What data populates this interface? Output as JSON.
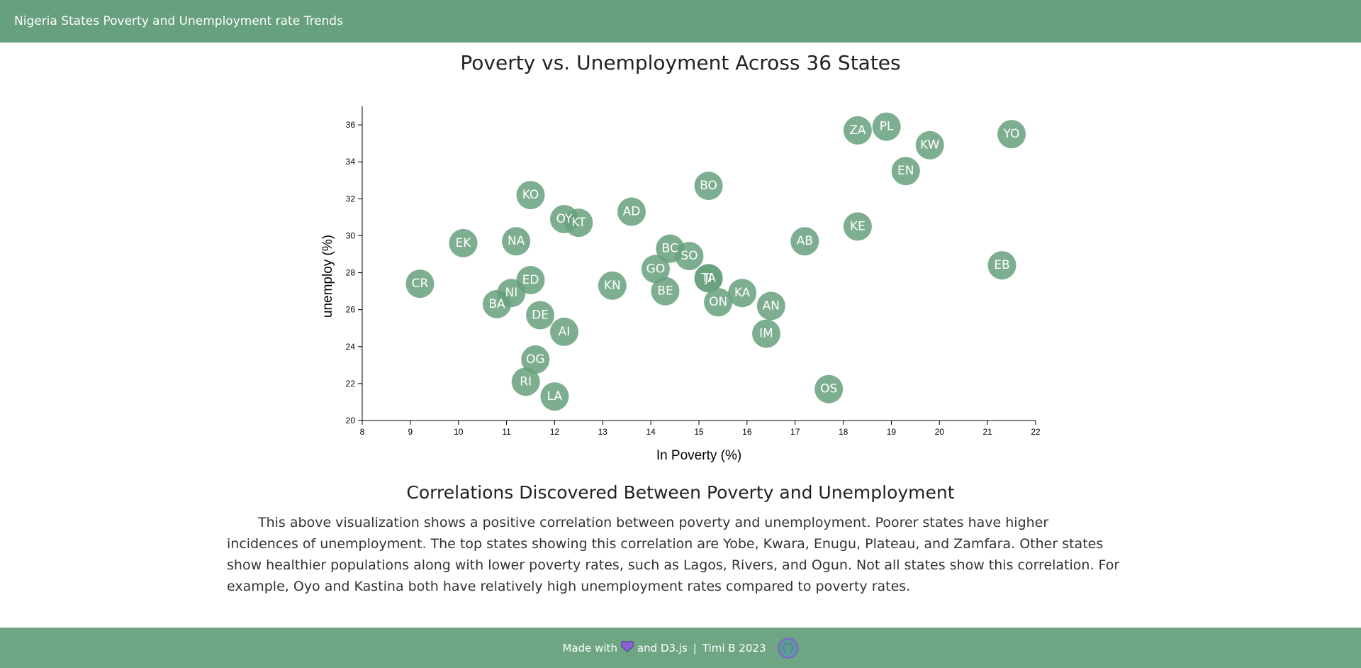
{
  "app": {
    "brand": "Nigeria States Poverty and Unemployment rate Trends"
  },
  "chart_title": "Poverty vs. Unemployment Across 36 States",
  "chart_data": {
    "type": "scatter",
    "title": "Poverty vs. Unemployment Across 36 States",
    "xlabel": "In Poverty (%)",
    "ylabel": "unemploy (%)",
    "xlim": [
      8,
      22
    ],
    "ylim": [
      20,
      37
    ],
    "xticks": [
      8,
      9,
      10,
      11,
      12,
      13,
      14,
      15,
      16,
      17,
      18,
      19,
      20,
      21,
      22
    ],
    "yticks": [
      20,
      22,
      24,
      26,
      28,
      30,
      32,
      34,
      36
    ],
    "grid": false,
    "points": [
      {
        "label": "YO",
        "x": 21.5,
        "y": 35.5
      },
      {
        "label": "PL",
        "x": 18.9,
        "y": 35.9
      },
      {
        "label": "ZA",
        "x": 18.3,
        "y": 35.7
      },
      {
        "label": "KW",
        "x": 19.8,
        "y": 34.9
      },
      {
        "label": "EN",
        "x": 19.3,
        "y": 33.5
      },
      {
        "label": "BO",
        "x": 15.2,
        "y": 32.7
      },
      {
        "label": "KO",
        "x": 11.5,
        "y": 32.2
      },
      {
        "label": "AD",
        "x": 13.6,
        "y": 31.3
      },
      {
        "label": "OY",
        "x": 12.2,
        "y": 30.9
      },
      {
        "label": "KT",
        "x": 12.5,
        "y": 30.7
      },
      {
        "label": "KE",
        "x": 18.3,
        "y": 30.5
      },
      {
        "label": "EK",
        "x": 10.1,
        "y": 29.6
      },
      {
        "label": "NA",
        "x": 11.2,
        "y": 29.7
      },
      {
        "label": "AB",
        "x": 17.2,
        "y": 29.7
      },
      {
        "label": "BC",
        "x": 14.4,
        "y": 29.3
      },
      {
        "label": "SO",
        "x": 14.8,
        "y": 28.9
      },
      {
        "label": "EB",
        "x": 21.3,
        "y": 28.4
      },
      {
        "label": "GO",
        "x": 14.1,
        "y": 28.2
      },
      {
        "label": "TA",
        "x": 15.2,
        "y": 27.7
      },
      {
        "label": "JI",
        "x": 15.2,
        "y": 27.7
      },
      {
        "label": "CR",
        "x": 9.2,
        "y": 27.4
      },
      {
        "label": "ED",
        "x": 11.5,
        "y": 27.6
      },
      {
        "label": "KN",
        "x": 13.2,
        "y": 27.3
      },
      {
        "label": "NI",
        "x": 11.1,
        "y": 26.9
      },
      {
        "label": "BE",
        "x": 14.3,
        "y": 27.0
      },
      {
        "label": "KA",
        "x": 15.9,
        "y": 26.9
      },
      {
        "label": "ON",
        "x": 15.4,
        "y": 26.4
      },
      {
        "label": "BA",
        "x": 10.8,
        "y": 26.3
      },
      {
        "label": "AN",
        "x": 16.5,
        "y": 26.2
      },
      {
        "label": "DE",
        "x": 11.7,
        "y": 25.7
      },
      {
        "label": "AI",
        "x": 12.2,
        "y": 24.8
      },
      {
        "label": "IM",
        "x": 16.4,
        "y": 24.7
      },
      {
        "label": "OG",
        "x": 11.6,
        "y": 23.3
      },
      {
        "label": "RI",
        "x": 11.4,
        "y": 22.1
      },
      {
        "label": "OS",
        "x": 17.7,
        "y": 21.7
      },
      {
        "label": "LA",
        "x": 12.0,
        "y": 21.3
      }
    ],
    "point_color": "#67a07d",
    "label_color": "#ffffff"
  },
  "analysis": {
    "title": "Correlations Discovered Between Poverty and Unemployment",
    "text": "This above visualization shows a positive correlation between poverty and unemployment. Poorer states have higher incidences of unemployment. The top states showing this correlation are Yobe, Kwara, Enugu, Plateau, and Zamfara. Other states show healthier populations along with lower poverty rates, such as Lagos, Rivers, and Ogun. Not all states show this correlation. For example, Oyo and Kastina both have relatively high unemployment rates compared to poverty rates."
  },
  "footer": {
    "made_with": "Made with",
    "heart_icon": "heart-icon",
    "and_text": "and D3.js",
    "separator": "|",
    "credit": "Timi B 2023",
    "github_icon": "github-icon"
  },
  "colors": {
    "navbar": "#67a07d",
    "footer": "#6ea684",
    "heart": "#8a63d2",
    "github_ring": "#7b68c8"
  }
}
